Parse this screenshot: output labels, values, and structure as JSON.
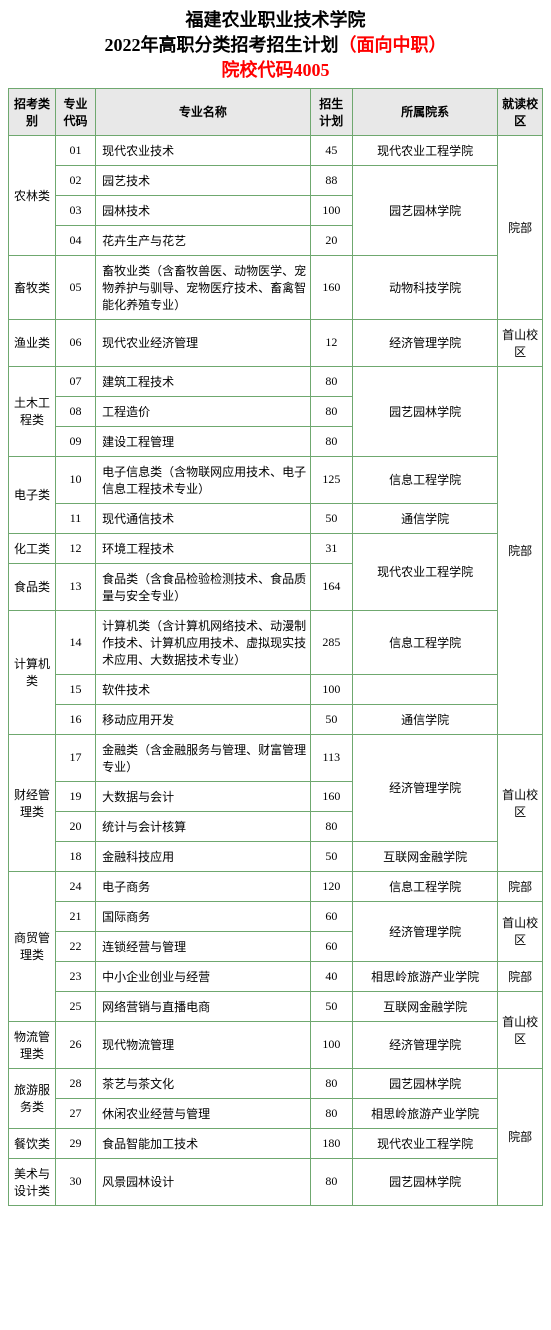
{
  "title_line1": "福建农业职业技术学院",
  "title_line2a": "2022年高职分类招考招生计划",
  "title_line2b": "（面向中职）",
  "title_line3": "院校代码4005",
  "headers": {
    "category": "招考类别",
    "code": "专业代码",
    "major": "专业名称",
    "plan": "招生计划",
    "dept": "所属院系",
    "campus": "就读校区"
  },
  "categories": {
    "agri": "农林类",
    "animal": "畜牧类",
    "fish": "渔业类",
    "civil": "土木工程类",
    "elec": "电子类",
    "chem": "化工类",
    "food": "食品类",
    "cs": "计算机类",
    "fin": "财经管理类",
    "biz": "商贸管理类",
    "log": "物流管理类",
    "tour": "旅游服务类",
    "rest": "餐饮类",
    "art": "美术与设计类"
  },
  "depts": {
    "modern_agri": "现代农业工程学院",
    "garden": "园艺园林学院",
    "animal_sci": "动物科技学院",
    "econ": "经济管理学院",
    "info": "信息工程学院",
    "comm": "通信学院",
    "internet_fin": "互联网金融学院",
    "xiangsi": "相思岭旅游产业学院"
  },
  "campus": {
    "main": "院部",
    "shoushan": "首山校区"
  },
  "rows": {
    "r01": {
      "code": "01",
      "major": "现代农业技术",
      "plan": "45"
    },
    "r02": {
      "code": "02",
      "major": "园艺技术",
      "plan": "88"
    },
    "r03": {
      "code": "03",
      "major": "园林技术",
      "plan": "100"
    },
    "r04": {
      "code": "04",
      "major": "花卉生产与花艺",
      "plan": "20"
    },
    "r05": {
      "code": "05",
      "major": "畜牧业类（含畜牧兽医、动物医学、宠物养护与驯导、宠物医疗技术、畜禽智能化养殖专业）",
      "plan": "160"
    },
    "r06": {
      "code": "06",
      "major": "现代农业经济管理",
      "plan": "12"
    },
    "r07": {
      "code": "07",
      "major": "建筑工程技术",
      "plan": "80"
    },
    "r08": {
      "code": "08",
      "major": "工程造价",
      "plan": "80"
    },
    "r09": {
      "code": "09",
      "major": "建设工程管理",
      "plan": "80"
    },
    "r10": {
      "code": "10",
      "major": "电子信息类（含物联网应用技术、电子信息工程技术专业）",
      "plan": "125"
    },
    "r11": {
      "code": "11",
      "major": "现代通信技术",
      "plan": "50"
    },
    "r12": {
      "code": "12",
      "major": "环境工程技术",
      "plan": "31"
    },
    "r13": {
      "code": "13",
      "major": "食品类（含食品检验检测技术、食品质量与安全专业）",
      "plan": "164"
    },
    "r14": {
      "code": "14",
      "major": "计算机类（含计算机网络技术、动漫制作技术、计算机应用技术、虚拟现实技术应用、大数据技术专业）",
      "plan": "285"
    },
    "r15": {
      "code": "15",
      "major": "软件技术",
      "plan": "100"
    },
    "r16": {
      "code": "16",
      "major": "移动应用开发",
      "plan": "50"
    },
    "r17": {
      "code": "17",
      "major": "金融类（含金融服务与管理、财富管理专业）",
      "plan": "113"
    },
    "r19": {
      "code": "19",
      "major": "大数据与会计",
      "plan": "160"
    },
    "r20": {
      "code": "20",
      "major": "统计与会计核算",
      "plan": "80"
    },
    "r18": {
      "code": "18",
      "major": "金融科技应用",
      "plan": "50"
    },
    "r24": {
      "code": "24",
      "major": "电子商务",
      "plan": "120"
    },
    "r21": {
      "code": "21",
      "major": "国际商务",
      "plan": "60"
    },
    "r22": {
      "code": "22",
      "major": "连锁经营与管理",
      "plan": "60"
    },
    "r23": {
      "code": "23",
      "major": "中小企业创业与经营",
      "plan": "40"
    },
    "r25": {
      "code": "25",
      "major": "网络营销与直播电商",
      "plan": "50"
    },
    "r26": {
      "code": "26",
      "major": "现代物流管理",
      "plan": "100"
    },
    "r28": {
      "code": "28",
      "major": "茶艺与茶文化",
      "plan": "80"
    },
    "r27": {
      "code": "27",
      "major": "休闲农业经营与管理",
      "plan": "80"
    },
    "r29": {
      "code": "29",
      "major": "食品智能加工技术",
      "plan": "180"
    },
    "r30": {
      "code": "30",
      "major": "风景园林设计",
      "plan": "80"
    }
  }
}
